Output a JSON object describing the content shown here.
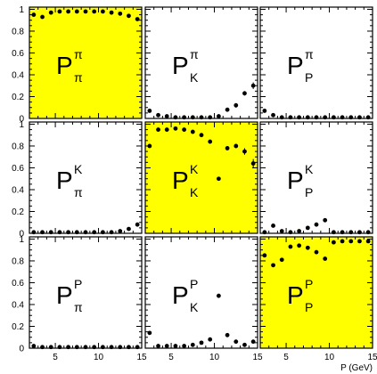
{
  "chart_data": {
    "type": "scatter",
    "layout": "3x3 grid of panels",
    "xlim": [
      2,
      15
    ],
    "ylim": [
      0,
      1.02
    ],
    "x_ticks": [
      "5",
      "10",
      "15"
    ],
    "y_ticks": [
      "0",
      "0.2",
      "0.4",
      "0.6",
      "0.8",
      "1"
    ],
    "xlabel": "P (GeV)",
    "highlight_color": "#ffff00",
    "marker_color": "#000000",
    "panels": [
      {
        "row": 0,
        "col": 0,
        "symbol": "P",
        "sup": "π",
        "sub": "π",
        "highlight": true,
        "error_bars": false,
        "x": [
          2.5,
          3.5,
          4.5,
          5.5,
          6.5,
          7.5,
          8.5,
          9.5,
          10.5,
          11.5,
          12.5,
          13.5,
          14.5
        ],
        "y": [
          0.95,
          0.93,
          0.97,
          0.98,
          0.98,
          0.98,
          0.98,
          0.98,
          0.98,
          0.97,
          0.96,
          0.94,
          0.91
        ]
      },
      {
        "row": 0,
        "col": 1,
        "symbol": "P",
        "sup": "π",
        "sub": "K",
        "highlight": false,
        "error_bars": true,
        "x": [
          2.5,
          3.5,
          4.5,
          5.5,
          6.5,
          7.5,
          8.5,
          9.5,
          10.5,
          11.5,
          12.5,
          13.5,
          14.5
        ],
        "y": [
          0.07,
          0.03,
          0.02,
          0.01,
          0.01,
          0.01,
          0.01,
          0.01,
          0.02,
          0.08,
          0.12,
          0.23,
          0.3
        ],
        "err": [
          0,
          0,
          0,
          0,
          0,
          0,
          0,
          0,
          0,
          0,
          0.02,
          0.02,
          0.03
        ]
      },
      {
        "row": 0,
        "col": 2,
        "symbol": "P",
        "sup": "π",
        "sub": "P",
        "highlight": false,
        "error_bars": false,
        "x": [
          2.5,
          3.5,
          4.5,
          5.5,
          6.5,
          7.5,
          8.5,
          9.5,
          10.5,
          11.5,
          12.5,
          13.5,
          14.5
        ],
        "y": [
          0.07,
          0.03,
          0.01,
          0.01,
          0.01,
          0.01,
          0.01,
          0.01,
          0.01,
          0.01,
          0.01,
          0.01,
          0.01
        ]
      },
      {
        "row": 1,
        "col": 0,
        "symbol": "P",
        "sup": "K",
        "sub": "π",
        "highlight": false,
        "error_bars": false,
        "x": [
          2.5,
          3.5,
          4.5,
          5.5,
          6.5,
          7.5,
          8.5,
          9.5,
          10.5,
          11.5,
          12.5,
          13.5,
          14.5
        ],
        "y": [
          0.01,
          0.01,
          0.01,
          0.01,
          0.01,
          0.01,
          0.01,
          0.01,
          0.01,
          0.01,
          0.02,
          0.04,
          0.08
        ]
      },
      {
        "row": 1,
        "col": 1,
        "symbol": "P",
        "sup": "K",
        "sub": "K",
        "highlight": true,
        "error_bars": true,
        "x": [
          2.5,
          3.5,
          4.5,
          5.5,
          6.5,
          7.5,
          8.5,
          9.5,
          10.5,
          11.5,
          12.5,
          13.5,
          14.5
        ],
        "y": [
          0.8,
          0.95,
          0.95,
          0.96,
          0.95,
          0.93,
          0.9,
          0.84,
          0.5,
          0.78,
          0.8,
          0.75,
          0.64
        ],
        "err": [
          0,
          0,
          0,
          0,
          0,
          0,
          0,
          0,
          0,
          0.02,
          0.02,
          0.03,
          0.04
        ]
      },
      {
        "row": 1,
        "col": 2,
        "symbol": "P",
        "sup": "K",
        "sub": "P",
        "highlight": false,
        "error_bars": false,
        "x": [
          2.5,
          3.5,
          4.5,
          5.5,
          6.5,
          7.5,
          8.5,
          9.5,
          10.5,
          11.5,
          12.5,
          13.5,
          14.5
        ],
        "y": [
          0.01,
          0.07,
          0.02,
          0.01,
          0.02,
          0.05,
          0.08,
          0.12,
          0.01,
          0.01,
          0.01,
          0.01,
          0.01
        ]
      },
      {
        "row": 2,
        "col": 0,
        "symbol": "P",
        "sup": "P",
        "sub": "π",
        "highlight": false,
        "error_bars": false,
        "x": [
          2.5,
          3.5,
          4.5,
          5.5,
          6.5,
          7.5,
          8.5,
          9.5,
          10.5,
          11.5,
          12.5,
          13.5,
          14.5
        ],
        "y": [
          0.02,
          0.01,
          0.01,
          0.01,
          0.01,
          0.01,
          0.01,
          0.01,
          0.01,
          0.01,
          0.01,
          0.01,
          0.01
        ]
      },
      {
        "row": 2,
        "col": 1,
        "symbol": "P",
        "sup": "P",
        "sub": "K",
        "highlight": false,
        "error_bars": false,
        "x": [
          2.5,
          3.5,
          4.5,
          5.5,
          6.5,
          7.5,
          8.5,
          9.5,
          10.5,
          11.5,
          12.5,
          13.5,
          14.5
        ],
        "y": [
          0.14,
          0.02,
          0.02,
          0.02,
          0.02,
          0.03,
          0.05,
          0.08,
          0.48,
          0.12,
          0.06,
          0.03,
          0.06
        ]
      },
      {
        "row": 2,
        "col": 2,
        "symbol": "P",
        "sup": "P",
        "sub": "P",
        "highlight": true,
        "error_bars": false,
        "x": [
          2.5,
          3.5,
          4.5,
          5.5,
          6.5,
          7.5,
          8.5,
          9.5,
          10.5,
          11.5,
          12.5,
          13.5,
          14.5
        ],
        "y": [
          0.85,
          0.76,
          0.81,
          0.93,
          0.94,
          0.92,
          0.88,
          0.82,
          0.97,
          0.98,
          0.98,
          0.98,
          0.98
        ]
      }
    ]
  }
}
